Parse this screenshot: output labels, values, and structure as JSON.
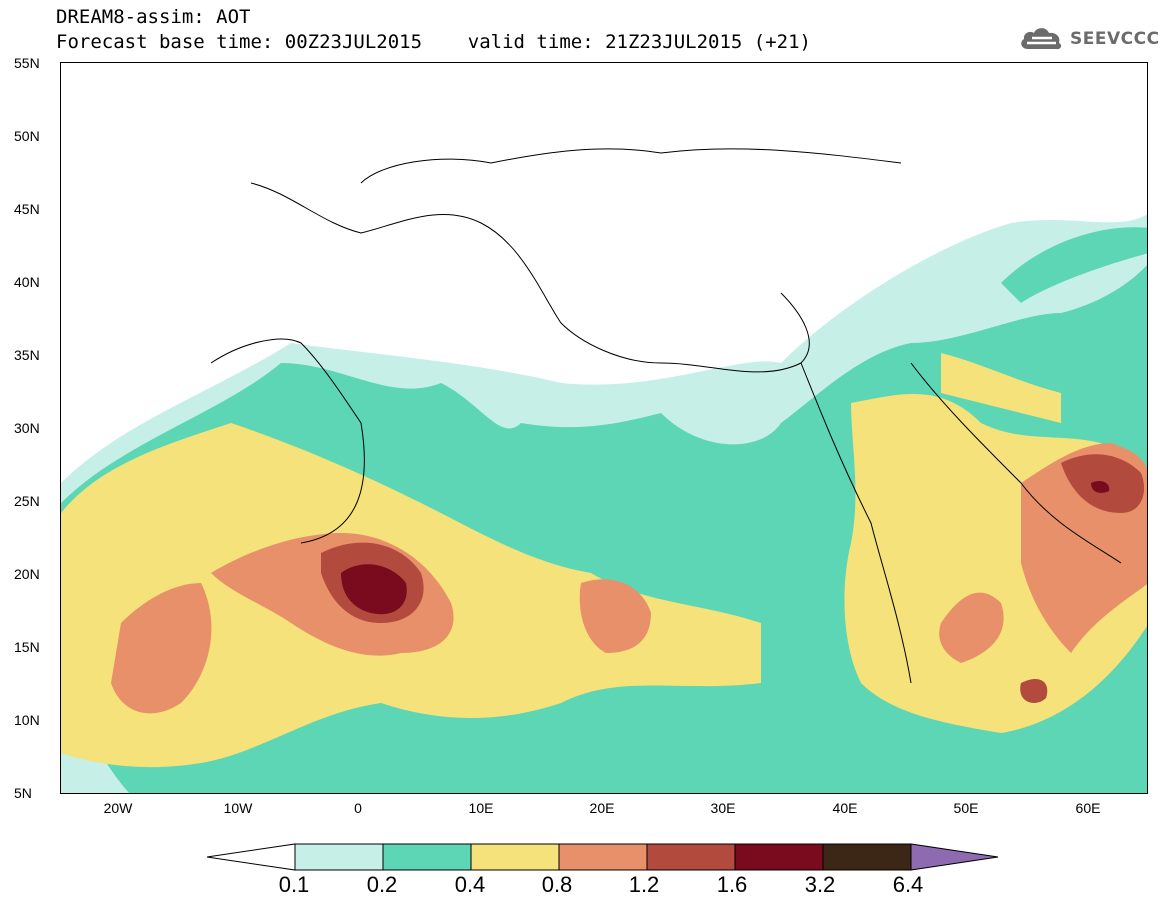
{
  "header": {
    "title_line1": "DREAM8-assim: AOT",
    "title_line2": "Forecast base time: 00Z23JUL2015    valid time: 21Z23JUL2015 (+21)",
    "logo_text": "SEEVCCC"
  },
  "map": {
    "lat_labels": [
      "55N",
      "50N",
      "45N",
      "40N",
      "35N",
      "30N",
      "25N",
      "20N",
      "15N",
      "10N",
      "5N"
    ],
    "lon_labels": [
      "20W",
      "10W",
      "0",
      "10E",
      "20E",
      "30E",
      "40E",
      "50E",
      "60E"
    ]
  },
  "colorbar": {
    "levels": [
      "0.1",
      "0.2",
      "0.4",
      "0.8",
      "1.2",
      "1.6",
      "3.2",
      "6.4"
    ],
    "colors": [
      "#ffffff",
      "#c6efe8",
      "#5cd6b4",
      "#f5e27a",
      "#e8906a",
      "#b24a3e",
      "#7a0a1e",
      "#3c2615",
      "#8e6bb0"
    ]
  }
}
